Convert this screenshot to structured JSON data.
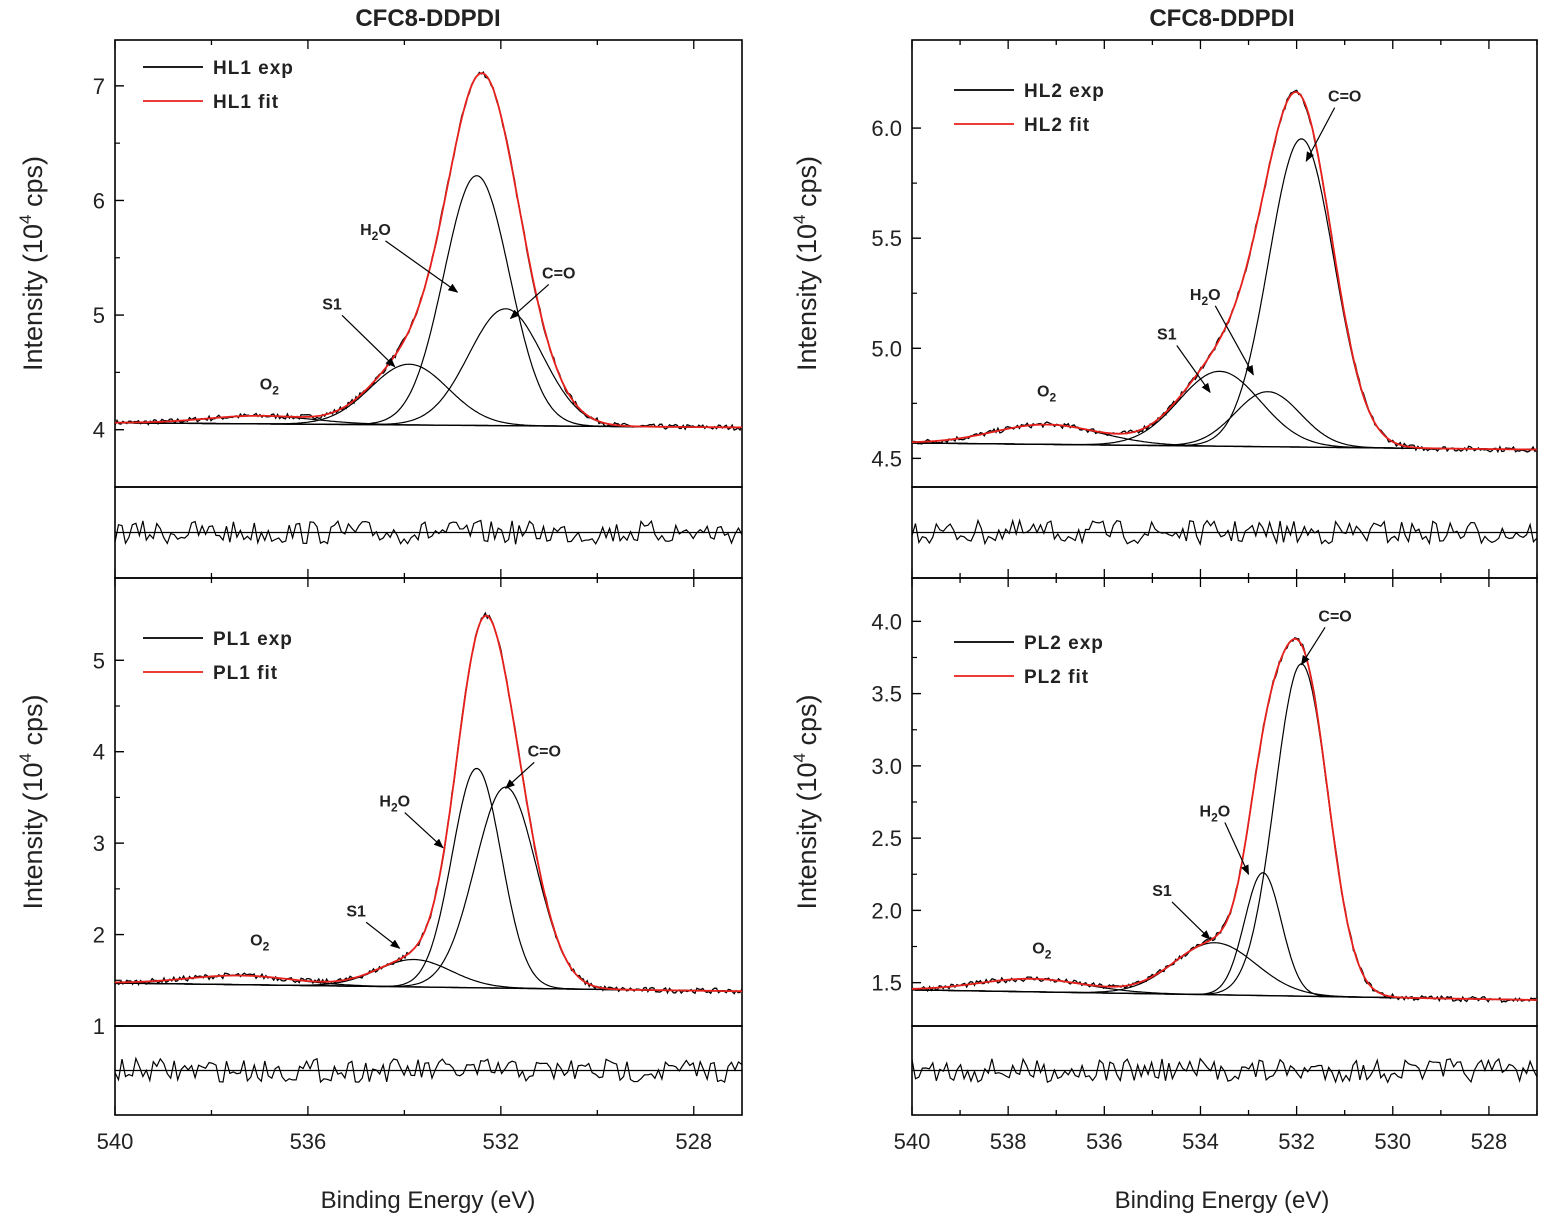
{
  "titles": {
    "left": "CFC8-DDPDI",
    "right": "CFC8-DDPDI"
  },
  "x_label": "Binding Energy (eV)",
  "chart_data": [
    {
      "type": "line",
      "id": "hl1",
      "title": "CFC8-DDPDI",
      "ylabel_pre": "Intensity (10",
      "ylabel_sup": "4",
      "ylabel_post": " cps)",
      "xlabel": "Binding Energy (eV)",
      "xlim": [
        540,
        527
      ],
      "ylim": [
        3.5,
        7.4
      ],
      "xticks": [
        540,
        536,
        532,
        528
      ],
      "yticks": [
        4,
        5,
        6,
        7
      ],
      "baseline": [
        4.06,
        4.02
      ],
      "legend": [
        {
          "label": "HL1 exp",
          "color": "#000000"
        },
        {
          "label": "HL1 fit",
          "color": "#e8201c"
        }
      ],
      "components": [
        {
          "name": "O2",
          "center": 537.0,
          "amplitude": 0.07,
          "fwhm": 2.6
        },
        {
          "name": "S1",
          "center": 533.9,
          "amplitude": 0.53,
          "fwhm": 1.9
        },
        {
          "name": "H2O",
          "center": 532.5,
          "amplitude": 2.18,
          "fwhm": 1.6
        },
        {
          "name": "C=O",
          "center": 531.9,
          "amplitude": 1.02,
          "fwhm": 1.8
        }
      ],
      "annotations": [
        {
          "text": "O",
          "sub": "2",
          "x": 536.8,
          "y": 4.35,
          "ax": null,
          "ay": null
        },
        {
          "text": "S1",
          "x": 535.5,
          "y": 5.05,
          "ax": 534.2,
          "ay": 4.55
        },
        {
          "text": "H",
          "sub": "2",
          "post": "O",
          "x": 534.6,
          "y": 5.7,
          "ax": 532.9,
          "ay": 5.2
        },
        {
          "text": "C=O",
          "x": 530.8,
          "y": 5.32,
          "ax": 531.8,
          "ay": 4.97
        }
      ]
    },
    {
      "type": "line",
      "id": "hl2",
      "title": "CFC8-DDPDI",
      "ylabel_pre": "Intensity (10",
      "ylabel_sup": "4",
      "ylabel_post": " cps)",
      "xlabel": "Binding Energy (eV)",
      "xlim": [
        540,
        527
      ],
      "ylim": [
        4.37,
        6.4
      ],
      "xticks": [
        540,
        538,
        536,
        534,
        532,
        530,
        528
      ],
      "yticks": [
        4.5,
        5.0,
        5.5,
        6.0
      ],
      "baseline": [
        4.57,
        4.54
      ],
      "legend": [
        {
          "label": "HL2 exp",
          "color": "#000000"
        },
        {
          "label": "HL2 fit",
          "color": "#e8201c"
        }
      ],
      "components": [
        {
          "name": "O2",
          "center": 537.2,
          "amplitude": 0.09,
          "fwhm": 2.6
        },
        {
          "name": "S1",
          "center": 533.6,
          "amplitude": 0.34,
          "fwhm": 2.0
        },
        {
          "name": "H2O",
          "center": 532.6,
          "amplitude": 0.25,
          "fwhm": 1.6
        },
        {
          "name": "C=O",
          "center": 531.9,
          "amplitude": 1.4,
          "fwhm": 1.6
        }
      ],
      "annotations": [
        {
          "text": "O",
          "sub": "2",
          "x": 537.2,
          "y": 4.78,
          "ax": null,
          "ay": null
        },
        {
          "text": "S1",
          "x": 534.7,
          "y": 5.04,
          "ax": 533.8,
          "ay": 4.8
        },
        {
          "text": "H",
          "sub": "2",
          "post": "O",
          "x": 533.9,
          "y": 5.22,
          "ax": 532.9,
          "ay": 4.88
        },
        {
          "text": "C=O",
          "x": 531.0,
          "y": 6.12,
          "ax": 531.8,
          "ay": 5.85
        }
      ]
    },
    {
      "type": "line",
      "id": "pl1",
      "title": "",
      "ylabel_pre": "Intensity (10",
      "ylabel_sup": "4",
      "ylabel_post": " cps)",
      "xlabel": "Binding Energy (eV)",
      "xlim": [
        540,
        527
      ],
      "ylim": [
        1.0,
        5.9
      ],
      "xticks": [
        540,
        536,
        532,
        528
      ],
      "yticks": [
        1,
        2,
        3,
        4,
        5
      ],
      "baseline": [
        1.47,
        1.38
      ],
      "legend": [
        {
          "label": "PL1 exp",
          "color": "#000000"
        },
        {
          "label": "PL1 fit",
          "color": "#e8201c"
        }
      ],
      "components": [
        {
          "name": "O2",
          "center": 537.4,
          "amplitude": 0.1,
          "fwhm": 2.6
        },
        {
          "name": "S1",
          "center": 533.8,
          "amplitude": 0.3,
          "fwhm": 1.8
        },
        {
          "name": "H2O",
          "center": 532.5,
          "amplitude": 2.4,
          "fwhm": 1.2
        },
        {
          "name": "C=O",
          "center": 531.9,
          "amplitude": 2.2,
          "fwhm": 1.5
        }
      ],
      "annotations": [
        {
          "text": "O",
          "sub": "2",
          "x": 537.0,
          "y": 1.88,
          "ax": null,
          "ay": null
        },
        {
          "text": "S1",
          "x": 535.0,
          "y": 2.2,
          "ax": 534.1,
          "ay": 1.85
        },
        {
          "text": "H",
          "sub": "2",
          "post": "O",
          "x": 534.2,
          "y": 3.4,
          "ax": 533.2,
          "ay": 2.95
        },
        {
          "text": "C=O",
          "x": 531.1,
          "y": 3.95,
          "ax": 531.9,
          "ay": 3.6
        }
      ]
    },
    {
      "type": "line",
      "id": "pl2",
      "title": "",
      "ylabel_pre": "Intensity (10",
      "ylabel_sup": "4",
      "ylabel_post": " cps)",
      "xlabel": "Binding Energy (eV)",
      "xlim": [
        540,
        527
      ],
      "ylim": [
        1.2,
        4.3
      ],
      "xticks": [
        540,
        538,
        536,
        534,
        532,
        530,
        528
      ],
      "yticks": [
        1.5,
        2.0,
        2.5,
        3.0,
        3.5,
        4.0
      ],
      "baseline": [
        1.45,
        1.38
      ],
      "legend": [
        {
          "label": "PL2 exp",
          "color": "#000000"
        },
        {
          "label": "PL2 fit",
          "color": "#e8201c"
        }
      ],
      "components": [
        {
          "name": "O2",
          "center": 537.5,
          "amplitude": 0.09,
          "fwhm": 2.6
        },
        {
          "name": "S1",
          "center": 533.7,
          "amplitude": 0.36,
          "fwhm": 2.0
        },
        {
          "name": "H2O",
          "center": 532.7,
          "amplitude": 0.85,
          "fwhm": 0.9
        },
        {
          "name": "C=O",
          "center": 531.9,
          "amplitude": 2.3,
          "fwhm": 1.3
        }
      ],
      "annotations": [
        {
          "text": "O",
          "sub": "2",
          "x": 537.3,
          "y": 1.7,
          "ax": null,
          "ay": null
        },
        {
          "text": "S1",
          "x": 534.8,
          "y": 2.1,
          "ax": 533.8,
          "ay": 1.8
        },
        {
          "text": "H",
          "sub": "2",
          "post": "O",
          "x": 533.7,
          "y": 2.65,
          "ax": 533.0,
          "ay": 2.25
        },
        {
          "text": "C=O",
          "x": 531.2,
          "y": 4.0,
          "ax": 531.9,
          "ay": 3.7
        }
      ]
    }
  ]
}
